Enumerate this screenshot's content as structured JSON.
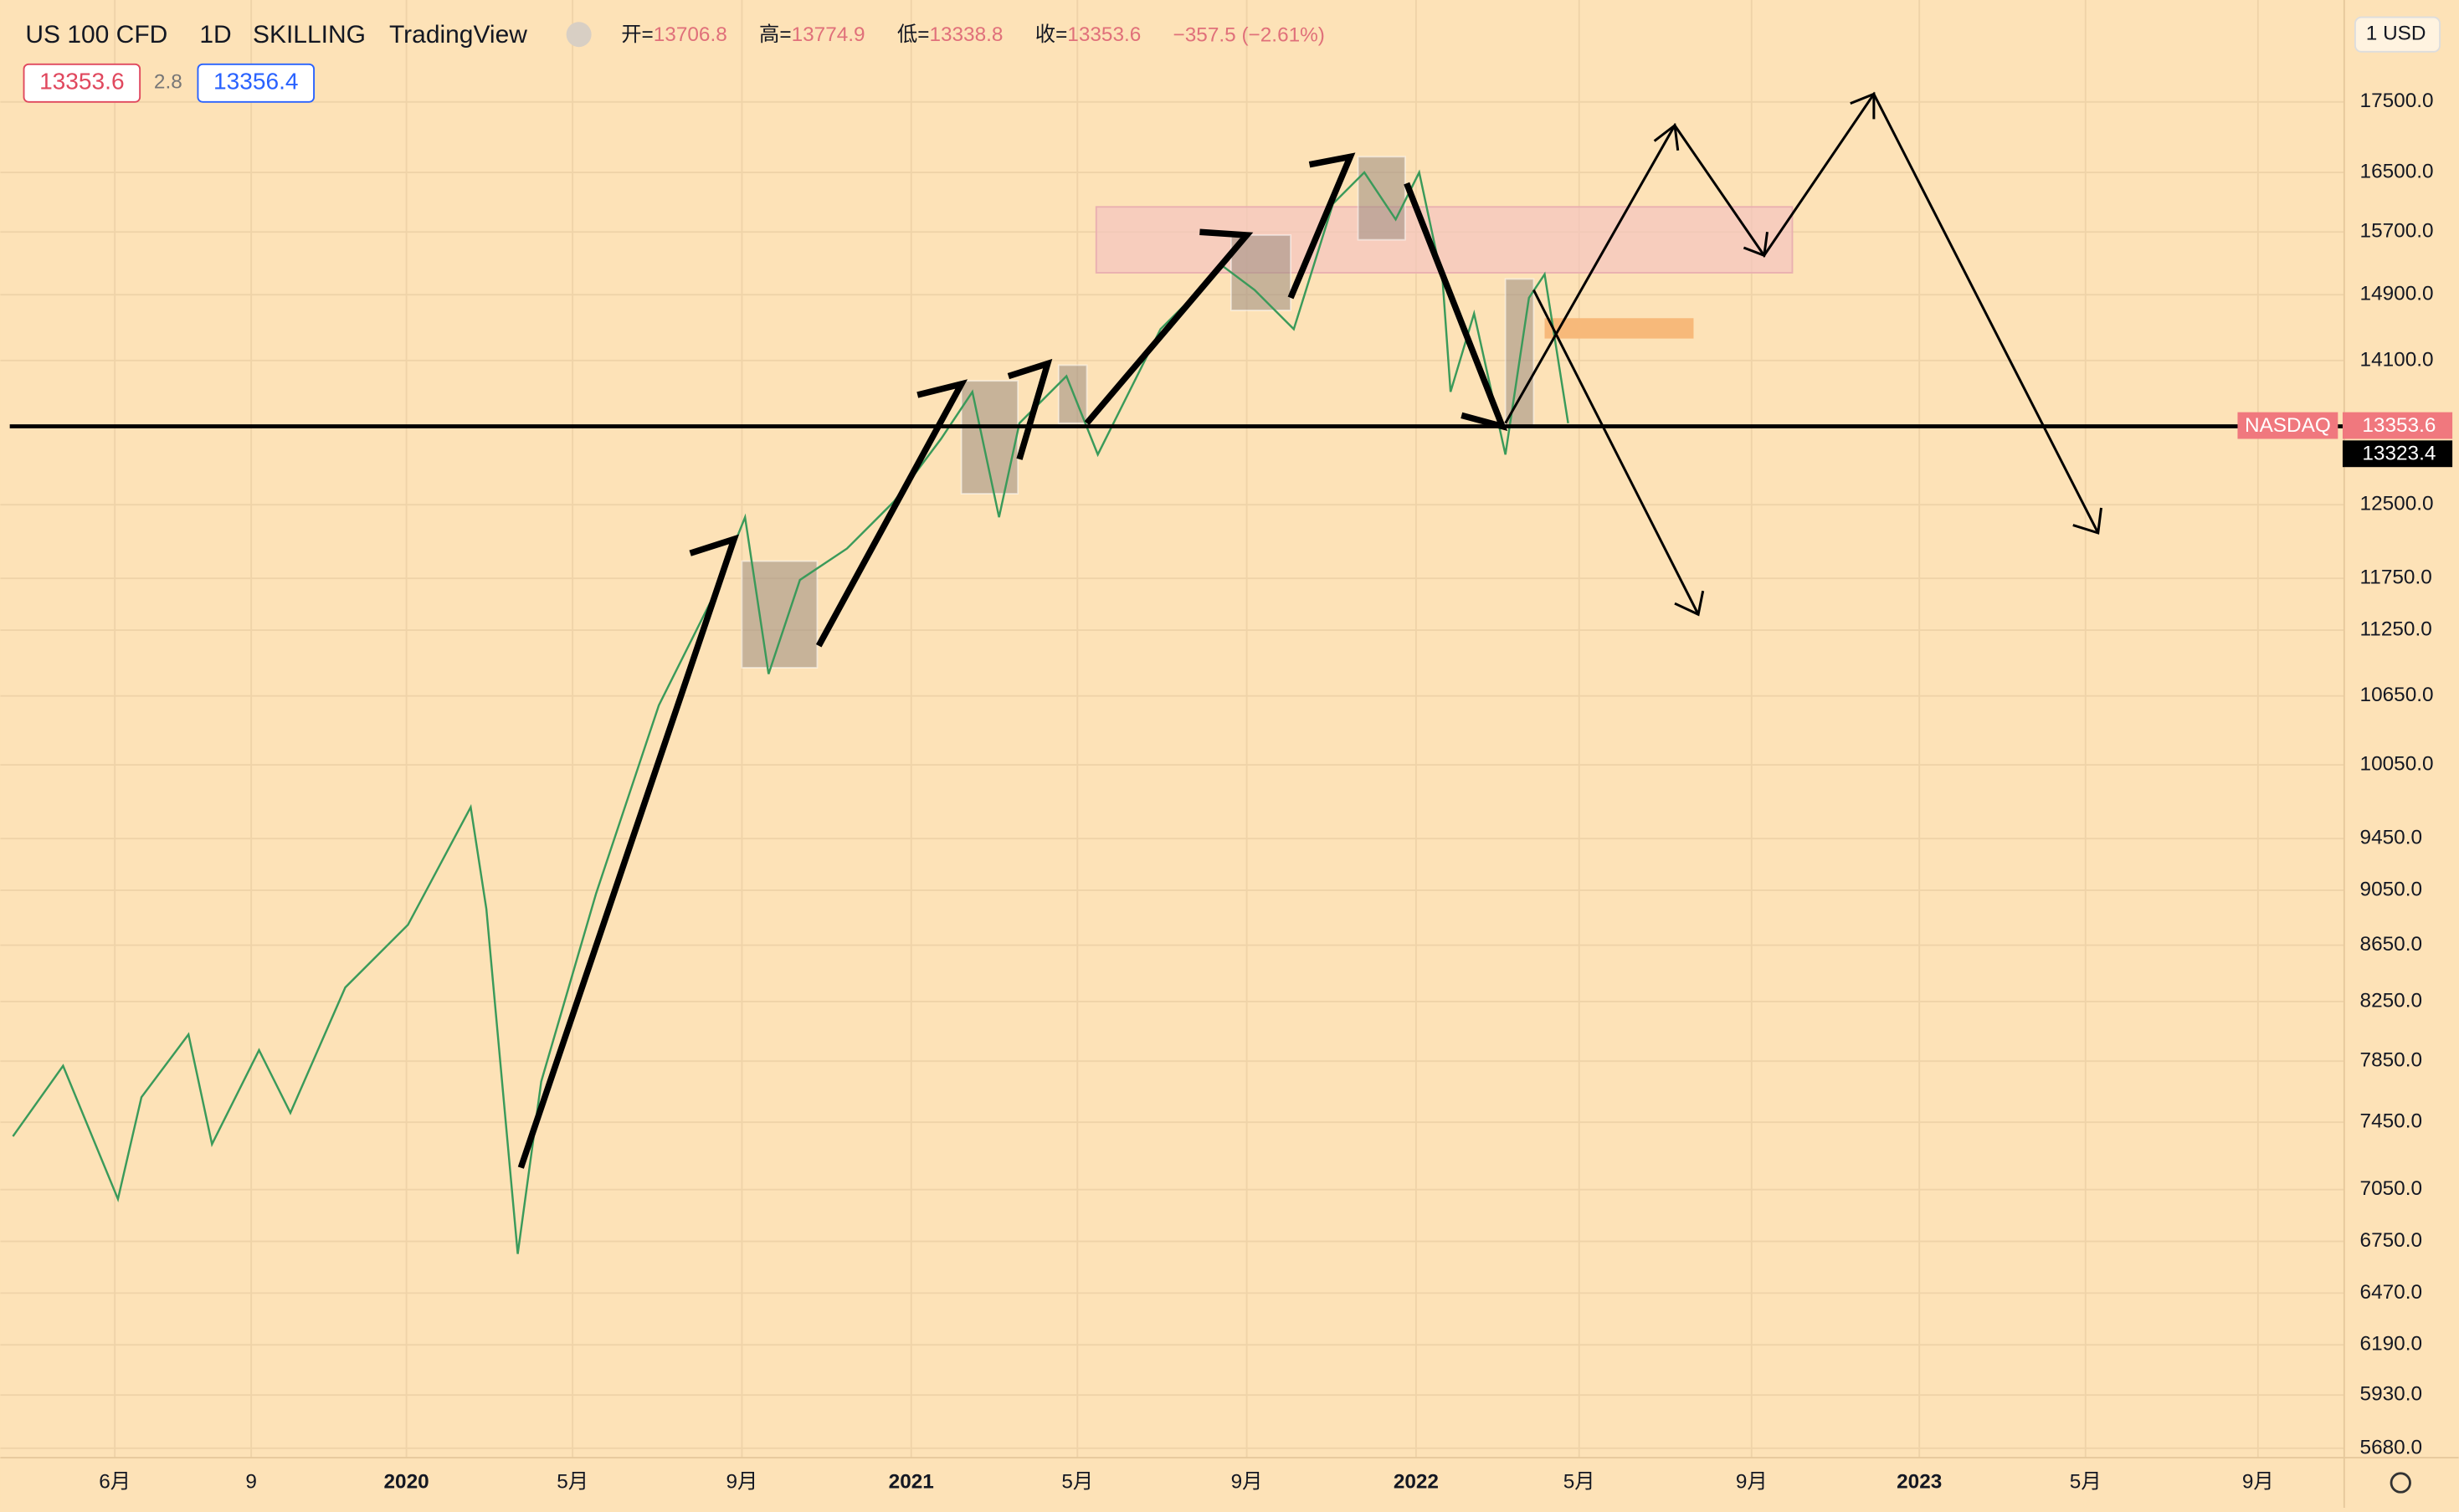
{
  "header": {
    "symbol": "US 100 CFD",
    "interval": "1D",
    "exchange": "SKILLING",
    "platform": "TradingView",
    "ohlc": [
      {
        "label": "开=",
        "value": "13706.8"
      },
      {
        "label": "高=",
        "value": "13774.9"
      },
      {
        "label": "低=",
        "value": "13338.8"
      },
      {
        "label": "收=",
        "value": "13353.6"
      }
    ],
    "change": "−357.5 (−2.61%)",
    "bid": "13353.6",
    "spread": "2.8",
    "ask": "13356.4"
  },
  "currency": "1 USD",
  "price_axis": [
    "17500.0",
    "16500.0",
    "15700.0",
    "14900.0",
    "14100.0",
    "12500.0",
    "11750.0",
    "11250.0",
    "10650.0",
    "10050.0",
    "9450.0",
    "9050.0",
    "8650.0",
    "8250.0",
    "7850.0",
    "7450.0",
    "7050.0",
    "6750.0",
    "6470.0",
    "6190.0",
    "5930.0",
    "5680.0"
  ],
  "time_axis": [
    "6月",
    "9",
    "2020",
    "5月",
    "9月",
    "2021",
    "5月",
    "9月",
    "2022",
    "5月",
    "9月",
    "2023",
    "5月",
    "9月"
  ],
  "line_label": "NASDAQ",
  "price_tag": "13353.6",
  "crosshair_tag": "13323.4"
}
